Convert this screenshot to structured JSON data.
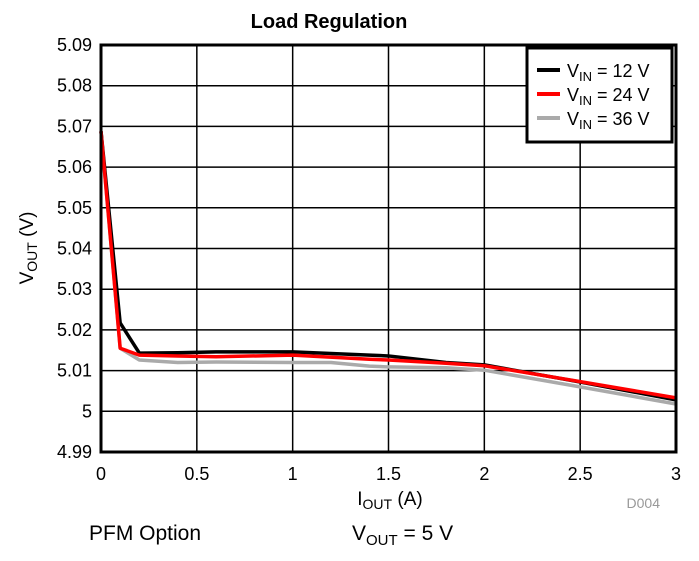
{
  "chart_data": {
    "type": "line",
    "title": "Load Regulation",
    "xlabel": {
      "main": "I",
      "sub": "OUT",
      "rest": " (A)"
    },
    "ylabel": {
      "main": "V",
      "sub": "OUT",
      "rest": " (V)"
    },
    "xlim": [
      0,
      3
    ],
    "ylim": [
      4.99,
      5.09
    ],
    "xticks": [
      "0",
      "0.5",
      "1",
      "1.5",
      "2",
      "2.5",
      "3"
    ],
    "yticks": [
      "4.99",
      "5",
      "5.01",
      "5.02",
      "5.03",
      "5.04",
      "5.05",
      "5.06",
      "5.07",
      "5.08",
      "5.09"
    ],
    "grid": true,
    "legend_position": "top-right",
    "series": [
      {
        "name": "VIN = 12 V",
        "label_main": "V",
        "label_sub": "IN",
        "label_rest": " = 12 V",
        "color": "#000000",
        "x": [
          0,
          0.1,
          0.2,
          0.4,
          0.6,
          1.0,
          1.4,
          1.5,
          1.8,
          2.0,
          2.5,
          3.0
        ],
        "y": [
          5.0688,
          5.0217,
          5.0143,
          5.0144,
          5.0146,
          5.0146,
          5.0138,
          5.0136,
          5.012,
          5.0114,
          5.0072,
          5.0028
        ]
      },
      {
        "name": "VIN = 24 V",
        "label_main": "V",
        "label_sub": "IN",
        "label_rest": " = 24 V",
        "color": "#ff0000",
        "x": [
          0,
          0.1,
          0.2,
          0.4,
          0.6,
          1.0,
          1.4,
          1.5,
          1.8,
          2.0,
          2.5,
          3.0
        ],
        "y": [
          5.0688,
          5.0155,
          5.0138,
          5.0136,
          5.0134,
          5.0138,
          5.0128,
          5.0126,
          5.0118,
          5.0112,
          5.0073,
          5.0033
        ]
      },
      {
        "name": "VIN = 36 V",
        "label_main": "V",
        "label_sub": "IN",
        "label_rest": " = 36 V",
        "color": "#aaaaaa",
        "x": [
          0,
          0.1,
          0.2,
          0.4,
          0.6,
          1.0,
          1.2,
          1.4,
          1.5,
          1.8,
          2.0,
          2.5,
          3.0
        ],
        "y": [
          5.0688,
          5.0155,
          5.0126,
          5.012,
          5.0121,
          5.012,
          5.012,
          5.0111,
          5.0109,
          5.0107,
          5.0101,
          5.006,
          5.0018
        ]
      }
    ],
    "annotation": "D004"
  },
  "footer": {
    "left": "PFM Option",
    "right_main": "V",
    "right_sub": "OUT",
    "right_rest": " = 5 V"
  }
}
